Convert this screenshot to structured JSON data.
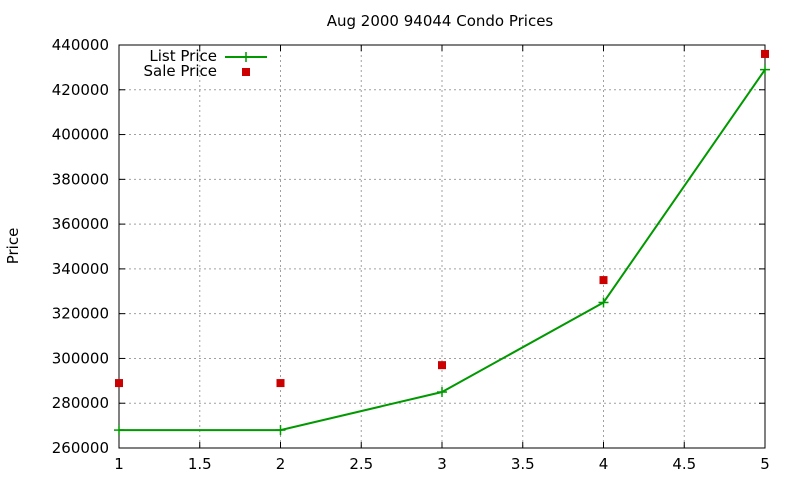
{
  "chart_data": {
    "type": "line",
    "title": "Aug 2000 94044 Condo Prices",
    "xlabel": "",
    "ylabel": "Price",
    "xlim": [
      1,
      5
    ],
    "ylim": [
      260000,
      440000
    ],
    "xticks": [
      "1",
      "1.5",
      "2",
      "2.5",
      "3",
      "3.5",
      "4",
      "4.5",
      "5"
    ],
    "yticks": [
      "260000",
      "280000",
      "300000",
      "320000",
      "340000",
      "360000",
      "380000",
      "400000",
      "420000",
      "440000"
    ],
    "grid": true,
    "legend_position": "top-left",
    "series": [
      {
        "name": "List Price",
        "style": "line-with-plus-markers",
        "color": "#009900",
        "x": [
          1,
          2,
          3,
          4,
          5
        ],
        "y": [
          268000,
          268000,
          285000,
          325000,
          429000
        ]
      },
      {
        "name": "Sale Price",
        "style": "square-points",
        "color": "#cc0000",
        "x": [
          1,
          2,
          3,
          4,
          5
        ],
        "y": [
          289000,
          289000,
          297000,
          335000,
          436000
        ]
      }
    ]
  }
}
